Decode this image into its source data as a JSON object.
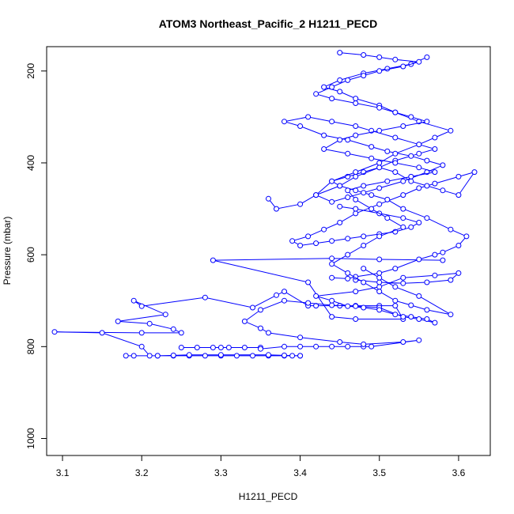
{
  "chart_data": {
    "type": "scatter",
    "title": "ATOM3 Northeast_Pacific_2 H1211_PECD",
    "xlabel": "H1211_PECD",
    "ylabel": "Pressure (mbar)",
    "xlim": [
      3.08,
      3.64
    ],
    "ylim": [
      1037,
      147
    ],
    "y_reversed": true,
    "x_ticks": [
      3.1,
      3.2,
      3.3,
      3.4,
      3.5,
      3.6
    ],
    "x_tick_labels": [
      "3.1",
      "3.2",
      "3.3",
      "3.4",
      "3.5",
      "3.6"
    ],
    "y_ticks": [
      200,
      400,
      600,
      800,
      1000
    ],
    "y_tick_labels": [
      "200",
      "400",
      "600",
      "800",
      "1000"
    ],
    "grid": false,
    "legend": "none",
    "marker": "open-circle",
    "connected": true,
    "series_color": "#0000ff",
    "series": [
      {
        "x": [
          3.18,
          3.19,
          3.22,
          3.24,
          3.26,
          3.28,
          3.3,
          3.32,
          3.34,
          3.36,
          3.38,
          3.39,
          3.4,
          3.4,
          3.38,
          3.36,
          3.3,
          3.26,
          3.24,
          3.22,
          3.21,
          3.2,
          3.15,
          3.09,
          3.2,
          3.25,
          3.24,
          3.21,
          3.17,
          3.23,
          3.19,
          3.2,
          3.28,
          3.34,
          3.37,
          3.38,
          3.41,
          3.42,
          3.45,
          3.47,
          3.5,
          3.52,
          3.53,
          3.47,
          3.44,
          3.41,
          3.29,
          3.44,
          3.5,
          3.58
        ],
        "y": [
          820,
          820,
          820,
          820,
          820,
          820,
          820,
          820,
          820,
          820,
          820,
          820,
          820,
          820,
          819,
          818,
          818,
          818,
          819,
          820,
          820,
          800,
          770,
          768,
          770,
          770,
          762,
          750,
          745,
          730,
          700,
          712,
          693,
          715,
          688,
          680,
          711,
          711,
          711,
          711,
          711,
          711,
          740,
          740,
          735,
          660,
          612,
          608,
          610,
          612
        ]
      },
      {
        "x": [
          3.25,
          3.27,
          3.29,
          3.3,
          3.31,
          3.33,
          3.35,
          3.35,
          3.38,
          3.4,
          3.42,
          3.44,
          3.46,
          3.48,
          3.49,
          3.55,
          3.53,
          3.48,
          3.45,
          3.4,
          3.36,
          3.35,
          3.33,
          3.35,
          3.38,
          3.41,
          3.44,
          3.47,
          3.5,
          3.53,
          3.55,
          3.57,
          3.56,
          3.54,
          3.52,
          3.5,
          3.48,
          3.46,
          3.44,
          3.42,
          3.47,
          3.5,
          3.53,
          3.57,
          3.6,
          3.59,
          3.56,
          3.53,
          3.5,
          3.47
        ],
        "y": [
          802,
          802,
          802,
          802,
          802,
          802,
          802,
          805,
          800,
          800,
          800,
          800,
          800,
          800,
          800,
          786,
          790,
          795,
          790,
          780,
          770,
          760,
          745,
          720,
          700,
          705,
          710,
          712,
          715,
          735,
          740,
          748,
          740,
          735,
          730,
          720,
          715,
          712,
          700,
          690,
          680,
          670,
          650,
          645,
          640,
          655,
          660,
          662,
          660,
          655
        ]
      },
      {
        "x": [
          3.44,
          3.46,
          3.47,
          3.5,
          3.52,
          3.55,
          3.57,
          3.58,
          3.6,
          3.61,
          3.59,
          3.56,
          3.53,
          3.51,
          3.49,
          3.47,
          3.45,
          3.44,
          3.46,
          3.48,
          3.5,
          3.52,
          3.54,
          3.56,
          3.58,
          3.6,
          3.62,
          3.6,
          3.57,
          3.55,
          3.53,
          3.5,
          3.47,
          3.45,
          3.43,
          3.41,
          3.39,
          3.4,
          3.42,
          3.44,
          3.46,
          3.48,
          3.5,
          3.52,
          3.54,
          3.55,
          3.53,
          3.5,
          3.47,
          3.45
        ],
        "y": [
          650,
          652,
          648,
          640,
          630,
          610,
          600,
          595,
          580,
          560,
          545,
          520,
          500,
          480,
          470,
          460,
          450,
          440,
          430,
          420,
          410,
          420,
          440,
          450,
          460,
          470,
          420,
          430,
          445,
          455,
          470,
          490,
          510,
          530,
          545,
          560,
          570,
          580,
          575,
          570,
          565,
          560,
          555,
          550,
          540,
          530,
          520,
          510,
          500,
          495
        ]
      },
      {
        "x": [
          3.36,
          3.37,
          3.4,
          3.42,
          3.45,
          3.47,
          3.5,
          3.52,
          3.55,
          3.57,
          3.55,
          3.52,
          3.49,
          3.47,
          3.44,
          3.41,
          3.38,
          3.4,
          3.43,
          3.46,
          3.49,
          3.51,
          3.54,
          3.56,
          3.58,
          3.56,
          3.53,
          3.5,
          3.48,
          3.46,
          3.44,
          3.42,
          3.44,
          3.47,
          3.5,
          3.52,
          3.55,
          3.57,
          3.59,
          3.55,
          3.52,
          3.5,
          3.47,
          3.45,
          3.43,
          3.45,
          3.48,
          3.51,
          3.54,
          3.56
        ],
        "y": [
          478,
          500,
          490,
          470,
          450,
          430,
          410,
          395,
          380,
          370,
          360,
          345,
          330,
          320,
          310,
          300,
          310,
          320,
          340,
          350,
          365,
          375,
          385,
          395,
          405,
          420,
          440,
          455,
          465,
          475,
          485,
          470,
          440,
          420,
          400,
          380,
          360,
          345,
          330,
          310,
          290,
          275,
          260,
          245,
          235,
          220,
          205,
          195,
          185,
          170
        ]
      },
      {
        "x": [
          3.45,
          3.48,
          3.5,
          3.52,
          3.55,
          3.53,
          3.5,
          3.48,
          3.46,
          3.44,
          3.42,
          3.44,
          3.47,
          3.5,
          3.52,
          3.54,
          3.56,
          3.53,
          3.5,
          3.47,
          3.45,
          3.43,
          3.46,
          3.49,
          3.52,
          3.55,
          3.57,
          3.54,
          3.51,
          3.48,
          3.46,
          3.47,
          3.49,
          3.51,
          3.53,
          3.5,
          3.48,
          3.46,
          3.44,
          3.46,
          3.48,
          3.5,
          3.52,
          3.54,
          3.56,
          3.59,
          3.55,
          3.52,
          3.5,
          3.48
        ],
        "y": [
          160,
          165,
          170,
          175,
          180,
          190,
          200,
          210,
          220,
          235,
          250,
          260,
          270,
          280,
          290,
          300,
          310,
          320,
          330,
          340,
          350,
          370,
          380,
          390,
          400,
          410,
          420,
          430,
          440,
          450,
          460,
          480,
          500,
          520,
          540,
          560,
          580,
          600,
          620,
          640,
          660,
          680,
          700,
          710,
          720,
          730,
          690,
          670,
          650,
          630
        ]
      }
    ]
  }
}
